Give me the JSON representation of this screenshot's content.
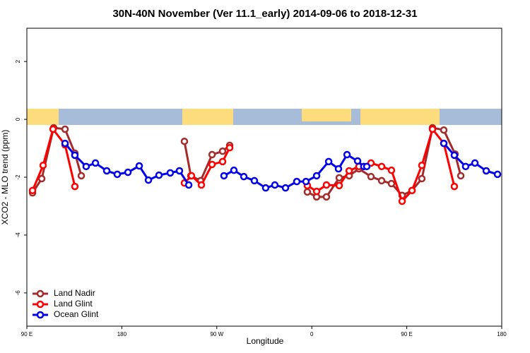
{
  "chart_data": {
    "type": "line",
    "title": "30N-40N November (Ver 11.1_early)   2014-09-06 to 2018-12-31",
    "x_label": "Longitude",
    "y_label": "XCO2 - MLO trend (ppm)",
    "xlim": [
      90,
      540
    ],
    "xticks": [
      {
        "value": 90,
        "label": "90 E"
      },
      {
        "value": 180,
        "label": "180"
      },
      {
        "value": 270,
        "label": "90 W"
      },
      {
        "value": 360,
        "label": "0"
      },
      {
        "value": 450,
        "label": "90 E"
      },
      {
        "value": 540,
        "label": "180"
      }
    ],
    "ylim": [
      -7.15,
      3.15
    ],
    "yticks": [
      -6,
      -4,
      -2,
      0,
      2
    ],
    "legend": "bottom-left",
    "series": [
      {
        "name": "Land Nadir",
        "color": "#a52a2a",
        "x": [
          95.4,
          104.1,
          115.4,
          126.2,
          135.5,
          141.6,
          null,
          239.3,
          245.4,
          254.7,
          265.5,
          275.5,
          282.2,
          null,
          355.8,
          364.6,
          373.9,
          386.0,
          395.4,
          404.7,
          416.1,
          426.2,
          435.5,
          445.6,
          455.0,
          464.3,
          474.4,
          485.1,
          495.8,
          501.2
        ],
        "values": [
          -2.54,
          -2.05,
          -0.29,
          -0.34,
          -1.17,
          -1.95,
          null,
          -0.76,
          -1.95,
          -2.12,
          -1.22,
          -1.1,
          -0.9,
          null,
          -2.51,
          -2.68,
          -2.68,
          -2.02,
          -1.95,
          -1.71,
          -1.98,
          -2.12,
          -2.22,
          -2.63,
          -2.46,
          -2.05,
          -0.29,
          -0.37,
          -1.2,
          -1.95
        ]
      },
      {
        "name": "Land Glint",
        "color": "#ff0000",
        "x": [
          95.4,
          105.4,
          114.8,
          126.2,
          135.5,
          null,
          239.3,
          246.0,
          255.4,
          265.5,
          275.5,
          282.2,
          null,
          355.8,
          364.6,
          373.9,
          386.0,
          395.4,
          404.7,
          416.1,
          426.2,
          435.5,
          445.6,
          455.0,
          464.3,
          474.4,
          485.1,
          495.1
        ],
        "values": [
          -2.46,
          -1.59,
          -0.34,
          -0.88,
          -2.32,
          null,
          -2.2,
          -1.95,
          -2.27,
          -1.56,
          -1.46,
          -0.98,
          null,
          -2.29,
          -2.49,
          -2.27,
          -2.29,
          -1.78,
          -1.63,
          -1.51,
          -1.63,
          -1.76,
          -2.83,
          -2.46,
          -1.59,
          -0.34,
          -0.83,
          -2.32
        ]
      },
      {
        "name": "Ocean Glint",
        "color": "#0000ee",
        "x": [
          126.2,
          135.5,
          146.2,
          155.0,
          165.7,
          175.7,
          185.8,
          196.5,
          205.2,
          215.2,
          225.9,
          234.6,
          243.4,
          null,
          276.8,
          286.2,
          295.6,
          305.6,
          316.3,
          325.0,
          335.1,
          345.8,
          354.5,
          364.6,
          376.0,
          385.3,
          393.4,
          403.4,
          409.3,
          412.1,
          null,
          485.1,
          495.1,
          505.8,
          514.6,
          525.3,
          536.0
        ],
        "values": [
          -0.83,
          -1.24,
          -1.63,
          -1.51,
          -1.78,
          -1.9,
          -1.83,
          -1.61,
          -2.1,
          -1.93,
          -1.85,
          -1.78,
          -2.27,
          null,
          -1.95,
          -1.76,
          -1.98,
          -2.12,
          -2.37,
          -2.27,
          -2.37,
          -2.15,
          -2.15,
          -1.95,
          -1.46,
          -1.71,
          -1.22,
          -1.44,
          -1.63,
          -1.63,
          null,
          -0.83,
          -1.24,
          -1.63,
          -1.51,
          -1.78,
          -1.9
        ]
      }
    ]
  }
}
